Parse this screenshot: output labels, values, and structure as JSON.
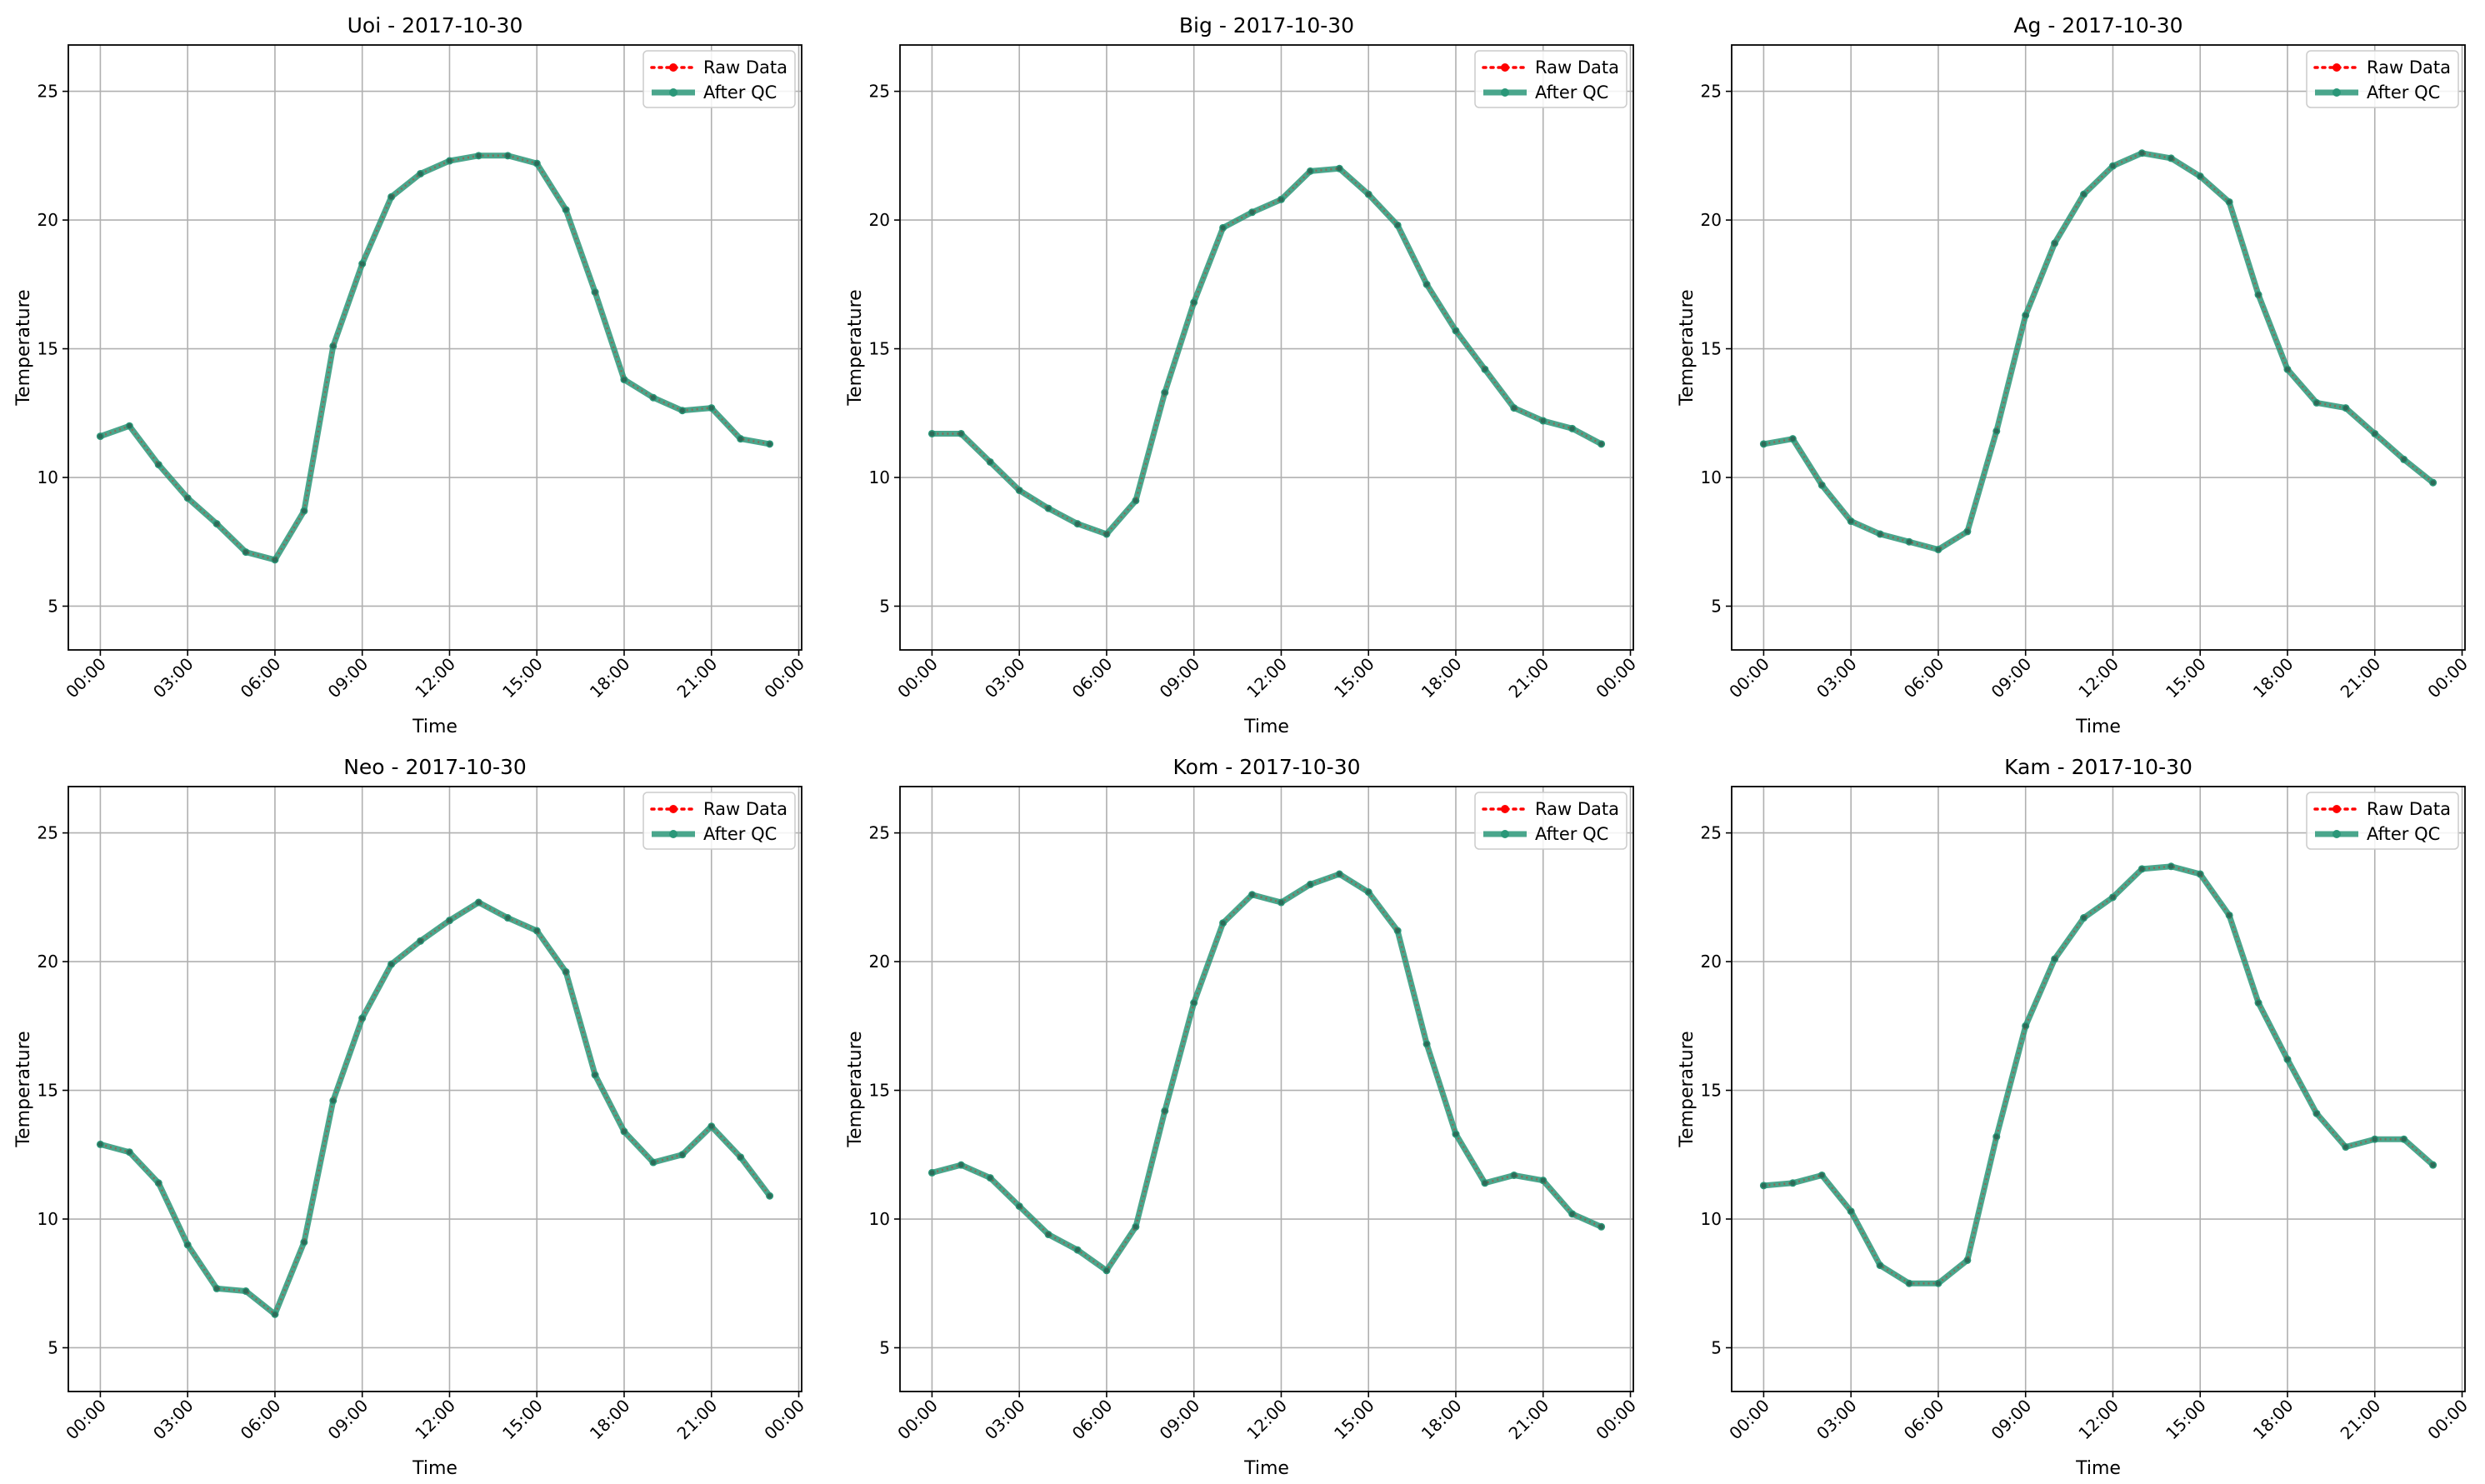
{
  "colors": {
    "raw": "#ff0000",
    "qc": "#2a9778",
    "grid": "#b0b0b0",
    "axis": "#000000"
  },
  "legend": {
    "raw_label": "Raw Data",
    "qc_label": "After QC",
    "placement": "upper right"
  },
  "chart_data": [
    {
      "type": "line",
      "title": "Uoi - 2017-10-30",
      "xlabel": "Time",
      "ylabel": "Temperature",
      "xlim": [
        -1.1,
        24.1
      ],
      "ylim": [
        3.3,
        26.8
      ],
      "xticks": [
        "00:00",
        "03:00",
        "06:00",
        "09:00",
        "12:00",
        "15:00",
        "18:00",
        "21:00",
        "00:00"
      ],
      "yticks": [
        5,
        10,
        15,
        20,
        25
      ],
      "grid": true,
      "x": [
        0,
        1,
        2,
        3,
        4,
        5,
        6,
        7,
        8,
        9,
        10,
        11,
        12,
        13,
        14,
        15,
        16,
        17,
        18,
        19,
        20,
        21,
        22,
        23
      ],
      "series": [
        {
          "name": "Raw Data",
          "values": [
            11.6,
            12.0,
            10.5,
            9.2,
            8.2,
            7.1,
            6.8,
            8.7,
            15.1,
            18.3,
            20.9,
            21.8,
            22.3,
            22.5,
            22.5,
            22.2,
            20.4,
            17.2,
            13.8,
            13.1,
            12.6,
            12.7,
            11.5,
            11.3
          ]
        },
        {
          "name": "After QC",
          "values": [
            11.6,
            12.0,
            10.5,
            9.2,
            8.2,
            7.1,
            6.8,
            8.7,
            15.1,
            18.3,
            20.9,
            21.8,
            22.3,
            22.5,
            22.5,
            22.2,
            20.4,
            17.2,
            13.8,
            13.1,
            12.6,
            12.7,
            11.5,
            11.3
          ]
        }
      ]
    },
    {
      "type": "line",
      "title": "Big - 2017-10-30",
      "xlabel": "Time",
      "ylabel": "Temperature",
      "xlim": [
        -1.1,
        24.1
      ],
      "ylim": [
        3.3,
        26.8
      ],
      "xticks": [
        "00:00",
        "03:00",
        "06:00",
        "09:00",
        "12:00",
        "15:00",
        "18:00",
        "21:00",
        "00:00"
      ],
      "yticks": [
        5,
        10,
        15,
        20,
        25
      ],
      "grid": true,
      "x": [
        0,
        1,
        2,
        3,
        4,
        5,
        6,
        7,
        8,
        9,
        10,
        11,
        12,
        13,
        14,
        15,
        16,
        17,
        18,
        19,
        20,
        21,
        22,
        23
      ],
      "series": [
        {
          "name": "Raw Data",
          "values": [
            11.7,
            11.7,
            10.6,
            9.5,
            8.8,
            8.2,
            7.8,
            9.1,
            13.3,
            16.8,
            19.7,
            20.3,
            20.8,
            21.9,
            22.0,
            21.0,
            19.8,
            17.5,
            15.7,
            14.2,
            12.7,
            12.2,
            11.9,
            11.3
          ]
        },
        {
          "name": "After QC",
          "values": [
            11.7,
            11.7,
            10.6,
            9.5,
            8.8,
            8.2,
            7.8,
            9.1,
            13.3,
            16.8,
            19.7,
            20.3,
            20.8,
            21.9,
            22.0,
            21.0,
            19.8,
            17.5,
            15.7,
            14.2,
            12.7,
            12.2,
            11.9,
            11.3
          ]
        }
      ]
    },
    {
      "type": "line",
      "title": "Ag - 2017-10-30",
      "xlabel": "Time",
      "ylabel": "Temperature",
      "xlim": [
        -1.1,
        24.1
      ],
      "ylim": [
        3.3,
        26.8
      ],
      "xticks": [
        "00:00",
        "03:00",
        "06:00",
        "09:00",
        "12:00",
        "15:00",
        "18:00",
        "21:00",
        "00:00"
      ],
      "yticks": [
        5,
        10,
        15,
        20,
        25
      ],
      "grid": true,
      "x": [
        0,
        1,
        2,
        3,
        4,
        5,
        6,
        7,
        8,
        9,
        10,
        11,
        12,
        13,
        14,
        15,
        16,
        17,
        18,
        19,
        20,
        21,
        22,
        23
      ],
      "series": [
        {
          "name": "Raw Data",
          "values": [
            11.3,
            11.5,
            9.7,
            8.3,
            7.8,
            7.5,
            7.2,
            7.9,
            11.8,
            16.3,
            19.1,
            21.0,
            22.1,
            22.6,
            22.4,
            21.7,
            20.7,
            17.1,
            14.2,
            12.9,
            12.7,
            11.7,
            10.7,
            9.8
          ]
        },
        {
          "name": "After QC",
          "values": [
            11.3,
            11.5,
            9.7,
            8.3,
            7.8,
            7.5,
            7.2,
            7.9,
            11.8,
            16.3,
            19.1,
            21.0,
            22.1,
            22.6,
            22.4,
            21.7,
            20.7,
            17.1,
            14.2,
            12.9,
            12.7,
            11.7,
            10.7,
            9.8
          ]
        }
      ]
    },
    {
      "type": "line",
      "title": "Neo - 2017-10-30",
      "xlabel": "Time",
      "ylabel": "Temperature",
      "xlim": [
        -1.1,
        24.1
      ],
      "ylim": [
        3.3,
        26.8
      ],
      "xticks": [
        "00:00",
        "03:00",
        "06:00",
        "09:00",
        "12:00",
        "15:00",
        "18:00",
        "21:00",
        "00:00"
      ],
      "yticks": [
        5,
        10,
        15,
        20,
        25
      ],
      "grid": true,
      "x": [
        0,
        1,
        2,
        3,
        4,
        5,
        6,
        7,
        8,
        9,
        10,
        11,
        12,
        13,
        14,
        15,
        16,
        17,
        18,
        19,
        20,
        21,
        22,
        23
      ],
      "series": [
        {
          "name": "Raw Data",
          "values": [
            12.9,
            12.6,
            11.4,
            9.0,
            7.3,
            7.2,
            6.3,
            9.1,
            14.6,
            17.8,
            19.9,
            20.8,
            21.6,
            22.3,
            21.7,
            21.2,
            19.6,
            15.6,
            13.4,
            12.2,
            12.5,
            13.6,
            12.4,
            10.9
          ]
        },
        {
          "name": "After QC",
          "values": [
            12.9,
            12.6,
            11.4,
            9.0,
            7.3,
            7.2,
            6.3,
            9.1,
            14.6,
            17.8,
            19.9,
            20.8,
            21.6,
            22.3,
            21.7,
            21.2,
            19.6,
            15.6,
            13.4,
            12.2,
            12.5,
            13.6,
            12.4,
            10.9
          ]
        }
      ]
    },
    {
      "type": "line",
      "title": "Kom - 2017-10-30",
      "xlabel": "Time",
      "ylabel": "Temperature",
      "xlim": [
        -1.1,
        24.1
      ],
      "ylim": [
        3.3,
        26.8
      ],
      "xticks": [
        "00:00",
        "03:00",
        "06:00",
        "09:00",
        "12:00",
        "15:00",
        "18:00",
        "21:00",
        "00:00"
      ],
      "yticks": [
        5,
        10,
        15,
        20,
        25
      ],
      "grid": true,
      "x": [
        0,
        1,
        2,
        3,
        4,
        5,
        6,
        7,
        8,
        9,
        10,
        11,
        12,
        13,
        14,
        15,
        16,
        17,
        18,
        19,
        20,
        21,
        22,
        23
      ],
      "series": [
        {
          "name": "Raw Data",
          "values": [
            11.8,
            12.1,
            11.6,
            10.5,
            9.4,
            8.8,
            8.0,
            9.7,
            14.2,
            18.4,
            21.5,
            22.6,
            22.3,
            23.0,
            23.4,
            22.7,
            21.2,
            16.8,
            13.3,
            11.4,
            11.7,
            11.5,
            10.2,
            9.7
          ]
        },
        {
          "name": "After QC",
          "values": [
            11.8,
            12.1,
            11.6,
            10.5,
            9.4,
            8.8,
            8.0,
            9.7,
            14.2,
            18.4,
            21.5,
            22.6,
            22.3,
            23.0,
            23.4,
            22.7,
            21.2,
            16.8,
            13.3,
            11.4,
            11.7,
            11.5,
            10.2,
            9.7
          ]
        }
      ]
    },
    {
      "type": "line",
      "title": "Kam - 2017-10-30",
      "xlabel": "Time",
      "ylabel": "Temperature",
      "xlim": [
        -1.1,
        24.1
      ],
      "ylim": [
        3.3,
        26.8
      ],
      "xticks": [
        "00:00",
        "03:00",
        "06:00",
        "09:00",
        "12:00",
        "15:00",
        "18:00",
        "21:00",
        "00:00"
      ],
      "yticks": [
        5,
        10,
        15,
        20,
        25
      ],
      "grid": true,
      "x": [
        0,
        1,
        2,
        3,
        4,
        5,
        6,
        7,
        8,
        9,
        10,
        11,
        12,
        13,
        14,
        15,
        16,
        17,
        18,
        19,
        20,
        21,
        22,
        23
      ],
      "series": [
        {
          "name": "Raw Data",
          "values": [
            11.3,
            11.4,
            11.7,
            10.3,
            8.2,
            7.5,
            7.5,
            8.4,
            13.2,
            17.5,
            20.1,
            21.7,
            22.5,
            23.6,
            23.7,
            23.4,
            21.8,
            18.4,
            16.2,
            14.1,
            12.8,
            13.1,
            13.1,
            12.1
          ]
        },
        {
          "name": "After QC",
          "values": [
            11.3,
            11.4,
            11.7,
            10.3,
            8.2,
            7.5,
            7.5,
            8.4,
            13.2,
            17.5,
            20.1,
            21.7,
            22.5,
            23.6,
            23.7,
            23.4,
            21.8,
            18.4,
            16.2,
            14.1,
            12.8,
            13.1,
            13.1,
            12.1
          ]
        }
      ]
    }
  ]
}
